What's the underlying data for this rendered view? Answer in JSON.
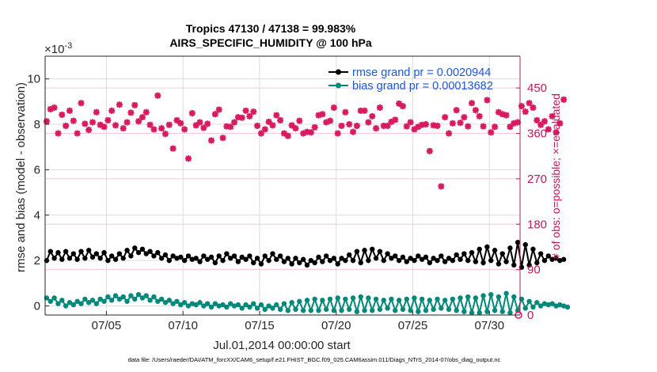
{
  "chart_data": {
    "type": "line",
    "title": "Tropics 47130 / 47138 = 99.983%",
    "subtitle": "AIRS_SPECIFIC_HUMIDITY @ 100 hPa",
    "xlabel": "Jul.01,2014 00:00:00 start",
    "ylabel_left": "rmse and bias (model - observation)",
    "ylabel_right": "# of obs: o=possible; ×=evaluated",
    "exponent_label": "×10",
    "exponent_power": "-3",
    "xlim": [
      1,
      32
    ],
    "ylim_left": [
      -0.4,
      11
    ],
    "ylim_right": [
      0,
      513
    ],
    "x_ticks": [
      5,
      10,
      15,
      20,
      25,
      30
    ],
    "x_tick_labels": [
      "07/05",
      "07/10",
      "07/15",
      "07/20",
      "07/25",
      "07/30"
    ],
    "y_left_ticks": [
      0,
      2,
      4,
      6,
      8,
      10
    ],
    "y_left_tick_labels": [
      "0",
      "2",
      "4",
      "6",
      "8",
      "10"
    ],
    "y_right_ticks": [
      0,
      90,
      180,
      270,
      360,
      450
    ],
    "y_right_tick_labels": [
      "0",
      "90",
      "180",
      "270",
      "360",
      "450"
    ],
    "grid": true,
    "legend_position": "top-right",
    "colors": {
      "rmse": "#000000",
      "bias": "#00897b",
      "obs": "#d81b60"
    },
    "series": [
      {
        "name": "rmse grand pr = 0.0020944",
        "axis": "left",
        "x_start": 1.1,
        "x_step": 0.25,
        "values": [
          2.0,
          2.4,
          2.1,
          2.35,
          2.05,
          2.4,
          2.1,
          2.3,
          2.05,
          2.4,
          2.1,
          2.45,
          2.15,
          2.3,
          2.1,
          2.35,
          2.0,
          2.2,
          2.05,
          2.3,
          2.1,
          2.45,
          2.2,
          2.55,
          2.35,
          2.5,
          2.3,
          2.4,
          2.2,
          2.35,
          2.1,
          2.25,
          2.0,
          2.2,
          2.1,
          2.15,
          2.0,
          2.2,
          2.05,
          2.1,
          1.95,
          2.2,
          2.05,
          2.15,
          1.9,
          2.2,
          2.0,
          2.3,
          2.1,
          2.2,
          1.95,
          2.15,
          2.05,
          2.2,
          1.9,
          2.1,
          1.85,
          2.2,
          2.0,
          2.3,
          2.05,
          2.2,
          1.95,
          2.1,
          1.85,
          2.1,
          1.9,
          2.05,
          1.8,
          2.0,
          1.9,
          2.15,
          1.95,
          2.2,
          2.0,
          2.1,
          1.85,
          2.1,
          2.0,
          2.25,
          2.0,
          2.4,
          1.9,
          2.45,
          2.0,
          2.5,
          2.1,
          2.4,
          2.0,
          2.3,
          2.1,
          2.2,
          2.0,
          2.15,
          1.95,
          2.1,
          2.0,
          2.2,
          2.05,
          2.15,
          1.9,
          2.1,
          2.0,
          2.2,
          1.95,
          2.1,
          2.0,
          2.25,
          2.05,
          2.3,
          2.0,
          2.35,
          1.95,
          2.5,
          1.9,
          2.6,
          2.0,
          2.45,
          1.85,
          2.3,
          1.95,
          2.55,
          1.8,
          2.8,
          1.7,
          2.7,
          1.8,
          2.5,
          1.9,
          2.3,
          2.0,
          2.2,
          2.05,
          2.1,
          2.0,
          2.05
        ]
      },
      {
        "name": "bias grand pr = 0.00013682",
        "axis": "left",
        "x_start": 1.1,
        "x_step": 0.25,
        "values": [
          0.35,
          0.2,
          0.35,
          0.1,
          0.25,
          0.0,
          0.15,
          0.05,
          0.2,
          0.1,
          0.3,
          0.15,
          0.25,
          0.1,
          0.3,
          0.2,
          0.4,
          0.25,
          0.45,
          0.3,
          0.4,
          0.2,
          0.45,
          0.3,
          0.5,
          0.35,
          0.45,
          0.25,
          0.4,
          0.2,
          0.3,
          0.15,
          0.25,
          0.1,
          0.2,
          0.05,
          0.15,
          0.0,
          0.1,
          0.05,
          0.15,
          0.0,
          0.1,
          -0.05,
          0.1,
          0.0,
          0.05,
          -0.05,
          0.1,
          0.0,
          0.05,
          -0.1,
          0.05,
          -0.05,
          0.1,
          -0.1,
          0.05,
          -0.15,
          0.0,
          -0.1,
          0.05,
          -0.15,
          0.1,
          -0.2,
          0.15,
          -0.15,
          0.2,
          -0.2,
          0.25,
          -0.2,
          0.3,
          -0.2,
          0.25,
          -0.15,
          0.3,
          -0.2,
          0.35,
          -0.2,
          0.3,
          -0.15,
          0.35,
          -0.25,
          0.4,
          -0.2,
          0.35,
          -0.2,
          0.3,
          -0.15,
          0.25,
          -0.1,
          0.3,
          -0.2,
          0.25,
          -0.15,
          0.3,
          -0.2,
          0.35,
          -0.25,
          0.3,
          -0.2,
          0.25,
          -0.15,
          0.3,
          -0.1,
          0.25,
          -0.15,
          0.3,
          -0.2,
          0.35,
          -0.25,
          0.4,
          -0.3,
          0.35,
          -0.3,
          0.45,
          -0.25,
          0.5,
          -0.2,
          0.4,
          -0.25,
          0.55,
          -0.3,
          0.4,
          -0.2,
          0.3,
          -0.1,
          0.2,
          -0.05,
          0.15,
          0.0,
          0.1,
          0.05,
          0.1,
          0.0,
          0.05,
          0.0,
          -0.05
        ]
      },
      {
        "name": "obs",
        "axis": "right",
        "x_start": 1.1,
        "x_step": 0.25,
        "values": [
          384,
          408,
          411,
          360,
          397,
          375,
          405,
          385,
          360,
          420,
          379,
          367,
          382,
          402,
          377,
          373,
          386,
          405,
          376,
          417,
          370,
          382,
          401,
          416,
          384,
          392,
          402,
          377,
          368,
          435,
          370,
          359,
          377,
          330,
          386,
          380,
          368,
          310,
          400,
          376,
          382,
          371,
          379,
          346,
          398,
          407,
          351,
          374,
          373,
          382,
          392,
          391,
          405,
          394,
          403,
          375,
          360,
          368,
          383,
          376,
          396,
          386,
          360,
          355,
          376,
          370,
          385,
          360,
          363,
          362,
          372,
          396,
          398,
          382,
          385,
          411,
          360,
          375,
          402,
          378,
          363,
          375,
          405,
          405,
          382,
          394,
          370,
          411,
          375,
          375,
          383,
          387,
          419,
          414,
          374,
          382,
          368,
          373,
          377,
          378,
          325,
          376,
          375,
          255,
          392,
          360,
          380,
          406,
          381,
          392,
          374,
          420,
          406,
          394,
          374,
          426,
          362,
          373,
          402,
          398,
          396,
          373,
          380,
          382,
          414,
          403,
          420,
          411,
          386,
          377,
          384,
          368,
          394,
          362,
          380,
          427
        ]
      }
    ],
    "footer": "data file: /Users/raeder/DAI/ATM_forcXX/CAM6_setup/f.e21.FHIST_BGC.f09_025.CAM6assim.011/Diags_NTrS_2014-07/obs_diag_output.nc"
  }
}
